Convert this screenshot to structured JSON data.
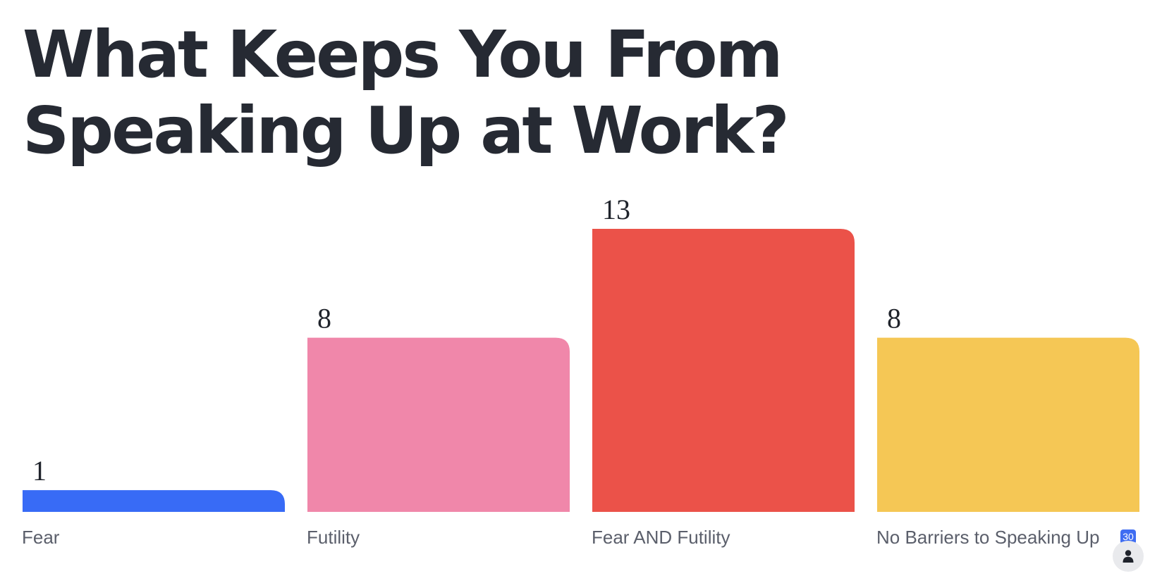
{
  "chart_data": {
    "type": "bar",
    "title": "What Keeps You From Speaking Up at Work?",
    "categories": [
      "Fear",
      "Futility",
      "Fear AND Futility",
      "No Barriers to Speaking Up"
    ],
    "values": [
      1,
      8,
      13,
      8
    ],
    "colors": [
      "#386bf6",
      "#f087aa",
      "#eb5249",
      "#f5c755"
    ],
    "ylim": [
      0,
      13
    ],
    "grid": false,
    "legend": "none",
    "xlabel": "",
    "ylabel": ""
  },
  "footer": {
    "response_count": "30",
    "user_icon": "person-icon"
  }
}
